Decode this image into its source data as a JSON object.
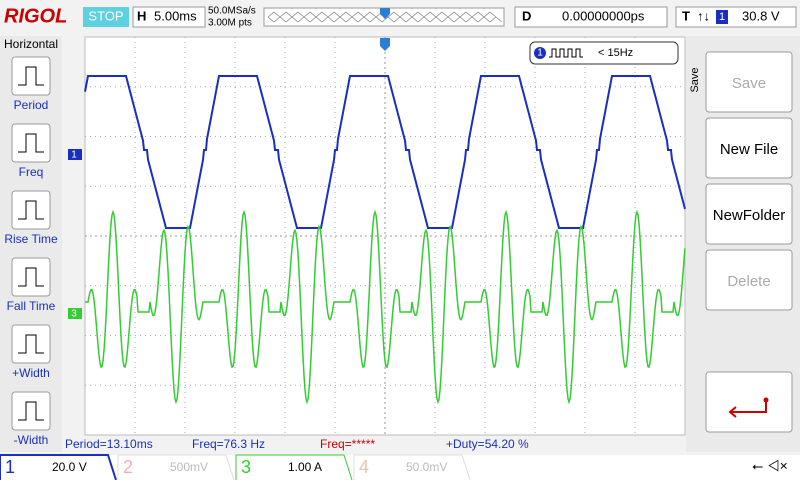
{
  "header": {
    "brand": "RIGOL",
    "status": "STOP",
    "timebase_label": "H",
    "timebase": "5.00ms",
    "sample_rate": "50.0MSa/s",
    "memory_depth": "3.00M pts",
    "delay_label": "D",
    "delay": "0.00000000ps",
    "trigger_label": "T",
    "trigger_source": "1",
    "trigger_level": "30.8 V"
  },
  "left_menu": {
    "title": "Horizontal",
    "items": [
      "Period",
      "Freq",
      "Rise Time",
      "Fall Time",
      "+Width",
      "-Width"
    ]
  },
  "right_menu": {
    "title": "Save",
    "items": [
      "Save",
      "New File",
      "NewFolder",
      "Delete"
    ]
  },
  "freq_box": {
    "channel": "1",
    "text": "< 15Hz"
  },
  "markers": {
    "ch1": "1",
    "ch3": "3"
  },
  "measurements": [
    "Period=13.10ms",
    "Freq=76.3 Hz",
    "Freq=*****",
    "+Duty=54.20 %"
  ],
  "channels": [
    {
      "number": "1",
      "scale": "20.0 V"
    },
    {
      "number": "2",
      "scale": "500mV"
    },
    {
      "number": "3",
      "scale": "1.00 A"
    },
    {
      "number": "4",
      "scale": "50.0mV"
    }
  ]
}
